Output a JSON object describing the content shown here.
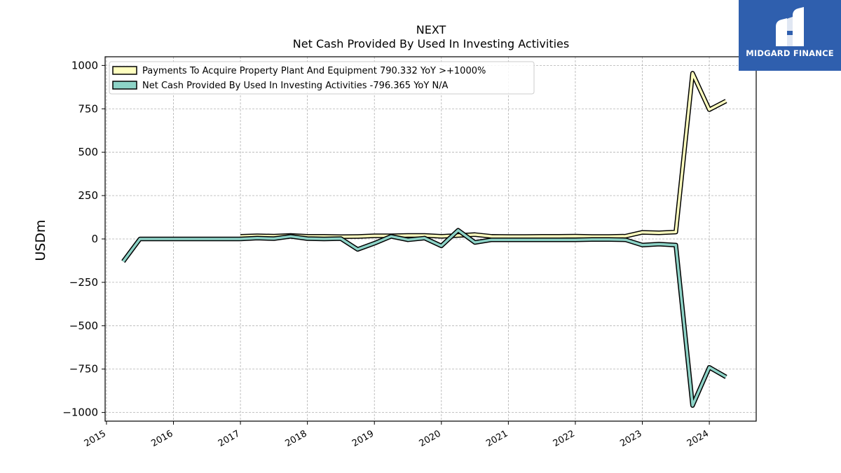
{
  "chart_data": {
    "type": "line",
    "title": "NEXT",
    "subtitle": "Net Cash Provided By Used In Investing Activities",
    "ylabel": "USDm",
    "xlabel": "",
    "ylim": [
      -1050,
      1050
    ],
    "xlim": [
      2014.98,
      2024.7
    ],
    "yticks": [
      1000,
      750,
      500,
      250,
      0,
      -250,
      -500,
      -750,
      -1000
    ],
    "ytick_labels": [
      "1000",
      "750",
      "500",
      "250",
      "0",
      "−250",
      "−500",
      "−750",
      "−1000"
    ],
    "xticks": [
      "2015",
      "2016",
      "2017",
      "2018",
      "2019",
      "2020",
      "2021",
      "2022",
      "2023",
      "2024"
    ],
    "grid": true,
    "legend_position": "top-left",
    "series": [
      {
        "name": "Payments To Acquire Property Plant And Equipment",
        "legend_label": "Payments To Acquire Property Plant And Equipment  790.332 YoY >+1000%",
        "color": "#ffffbf",
        "points": [
          [
            2017.0,
            15
          ],
          [
            2017.25,
            18
          ],
          [
            2017.5,
            16
          ],
          [
            2017.75,
            20
          ],
          [
            2018.0,
            15
          ],
          [
            2018.25,
            15
          ],
          [
            2018.5,
            13
          ],
          [
            2018.75,
            14
          ],
          [
            2019.0,
            18
          ],
          [
            2019.25,
            18
          ],
          [
            2019.5,
            20
          ],
          [
            2019.75,
            20
          ],
          [
            2020.0,
            15
          ],
          [
            2020.25,
            20
          ],
          [
            2020.5,
            25
          ],
          [
            2020.75,
            15
          ],
          [
            2021.0,
            14
          ],
          [
            2021.25,
            14
          ],
          [
            2021.5,
            15
          ],
          [
            2021.75,
            15
          ],
          [
            2022.0,
            16
          ],
          [
            2022.25,
            14
          ],
          [
            2022.5,
            14
          ],
          [
            2022.75,
            16
          ],
          [
            2023.0,
            38
          ],
          [
            2023.25,
            35
          ],
          [
            2023.5,
            40
          ],
          [
            2023.75,
            955
          ],
          [
            2024.0,
            745
          ],
          [
            2024.25,
            795
          ]
        ]
      },
      {
        "name": "Net Cash Provided By Used In Investing Activities",
        "legend_label": "Net Cash Provided By Used In Investing Activities  -796.365 YoY N/A",
        "color": "#8dd3c7",
        "points": [
          [
            2015.25,
            -130
          ],
          [
            2015.5,
            0
          ],
          [
            2015.75,
            0
          ],
          [
            2016.0,
            0
          ],
          [
            2016.25,
            0
          ],
          [
            2016.5,
            0
          ],
          [
            2016.75,
            0
          ],
          [
            2017.0,
            0
          ],
          [
            2017.25,
            5
          ],
          [
            2017.5,
            2
          ],
          [
            2017.75,
            15
          ],
          [
            2018.0,
            2
          ],
          [
            2018.25,
            0
          ],
          [
            2018.5,
            2
          ],
          [
            2018.75,
            -60
          ],
          [
            2019.0,
            -25
          ],
          [
            2019.25,
            15
          ],
          [
            2019.5,
            -5
          ],
          [
            2019.75,
            5
          ],
          [
            2020.0,
            -40
          ],
          [
            2020.25,
            50
          ],
          [
            2020.5,
            -20
          ],
          [
            2020.75,
            -5
          ],
          [
            2021.0,
            -5
          ],
          [
            2021.25,
            -5
          ],
          [
            2021.5,
            -5
          ],
          [
            2021.75,
            -5
          ],
          [
            2022.0,
            -5
          ],
          [
            2022.25,
            -3
          ],
          [
            2022.5,
            -3
          ],
          [
            2022.75,
            -5
          ],
          [
            2023.0,
            -35
          ],
          [
            2023.25,
            -30
          ],
          [
            2023.5,
            -35
          ],
          [
            2023.75,
            -960
          ],
          [
            2024.0,
            -740
          ],
          [
            2024.25,
            -795
          ]
        ]
      }
    ]
  },
  "logo": {
    "name": "MIDGARD FINANCE"
  }
}
